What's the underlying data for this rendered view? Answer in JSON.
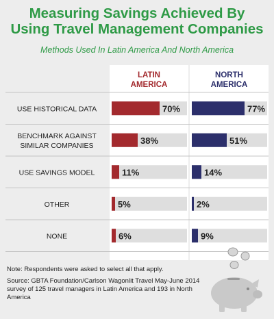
{
  "header": {
    "title_line1": "Measuring Savings Achieved By",
    "title_line2": "Using Travel Management Companies",
    "subtitle": "Methods Used In Latin America And North America"
  },
  "footer": {
    "note": "Note: Respondents were asked to select all that apply.",
    "source": "Source: GBTA Foundation/Carlson Wagonlit Travel May-June 2014 survey  of 125 travel managers in Latin America and 193 in North America"
  },
  "colors": {
    "latin_america": "#a32a2e",
    "north_america": "#2c2f6b",
    "track": "#dedede",
    "title": "#2e9a46"
  },
  "icons": [
    "piggy-bank-icon",
    "dollar-coin-icon"
  ],
  "chart_data": {
    "type": "bar",
    "orientation": "horizontal",
    "categories": [
      "USE HISTORICAL DATA",
      "BENCHMARK AGAINST SIMILAR COMPANIES",
      "USE SAVINGS MODEL",
      "OTHER",
      "NONE"
    ],
    "series": [
      {
        "name": "LATIN AMERICA",
        "values": [
          70,
          38,
          11,
          5,
          6
        ],
        "labels": [
          "70%",
          "38%",
          "11%",
          "5%",
          "6%"
        ]
      },
      {
        "name": "NORTH AMERICA",
        "values": [
          77,
          51,
          14,
          2,
          9
        ],
        "labels": [
          "77%",
          "51%",
          "14%",
          "2%",
          "9%"
        ]
      }
    ],
    "xlim": [
      0,
      100
    ],
    "unit": "%"
  }
}
